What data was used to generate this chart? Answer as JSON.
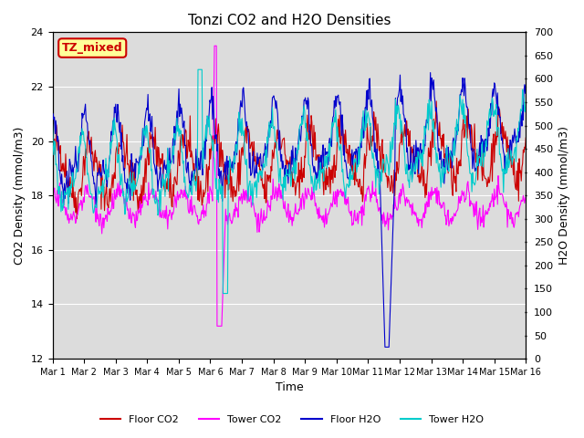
{
  "title": "Tonzi CO2 and H2O Densities",
  "xlabel": "Time",
  "ylabel_left": "CO2 Density (mmol/m3)",
  "ylabel_right": "H2O Density (mmol/m3)",
  "ylim_left": [
    12,
    24
  ],
  "ylim_right": [
    0,
    700
  ],
  "yticks_left": [
    12,
    14,
    16,
    18,
    20,
    22,
    24
  ],
  "yticks_right": [
    0,
    50,
    100,
    150,
    200,
    250,
    300,
    350,
    400,
    450,
    500,
    550,
    600,
    650,
    700
  ],
  "xtick_labels": [
    "Mar 1",
    "Mar 2",
    "Mar 3",
    "Mar 4",
    "Mar 5",
    "Mar 6",
    "Mar 7",
    "Mar 8",
    "Mar 9",
    "Mar 10",
    "Mar 11",
    "Mar 12",
    "Mar 13",
    "Mar 14",
    "Mar 15",
    "Mar 16"
  ],
  "n_days": 15,
  "pts_per_day": 48,
  "background_color": "#dcdcdc",
  "floor_co2_color": "#cc0000",
  "tower_co2_color": "#ff00ff",
  "floor_h2o_color": "#0000cc",
  "tower_h2o_color": "#00cccc",
  "label_box_text": "TZ_mixed",
  "label_box_bg": "#ffff99",
  "label_box_edge": "#cc0000",
  "legend_labels": [
    "Floor CO2",
    "Tower CO2",
    "Floor H2O",
    "Tower H2O"
  ],
  "figsize": [
    6.4,
    4.8
  ],
  "dpi": 100
}
